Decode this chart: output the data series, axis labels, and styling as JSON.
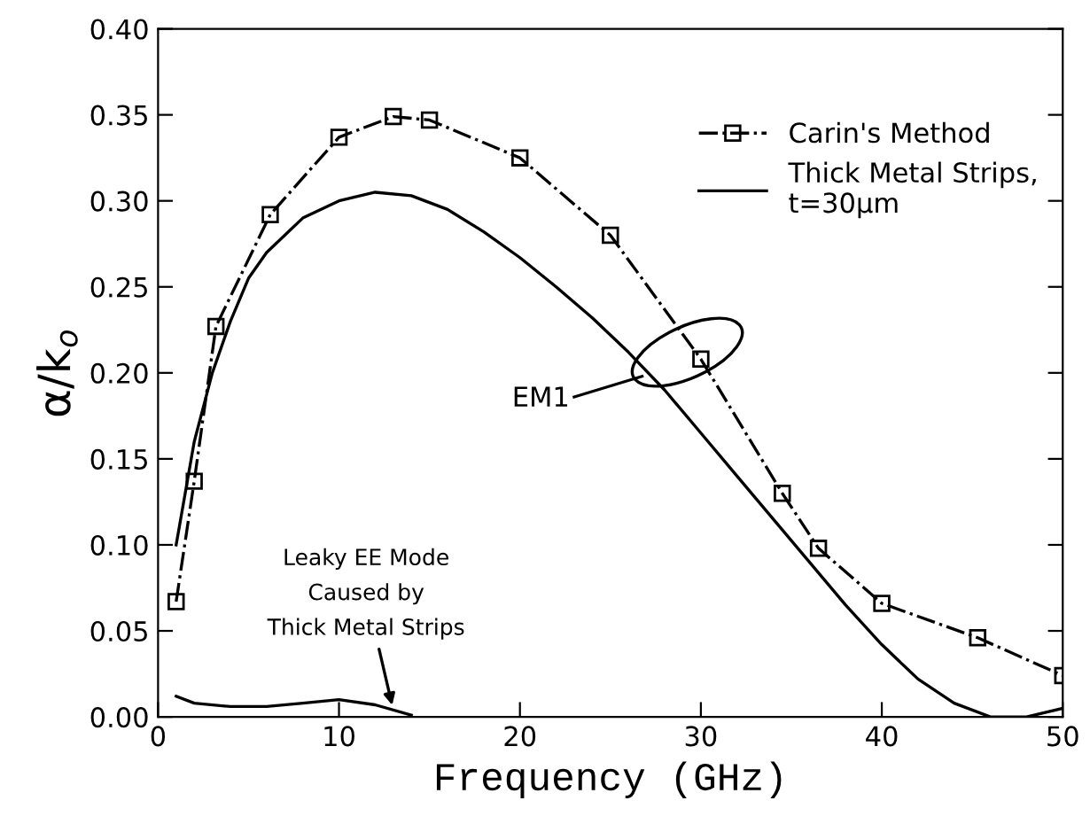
{
  "chart_data": {
    "type": "line",
    "xlabel": "Frequency (GHz)",
    "ylabel": "α/k$_{o}$",
    "xlim": [
      0,
      50
    ],
    "ylim": [
      0,
      0.4
    ],
    "xticks": [
      0,
      10,
      20,
      30,
      40,
      50
    ],
    "yticks": [
      {
        "value": 0,
        "label": "0.00"
      },
      {
        "value": 0.05,
        "label": "0.05"
      },
      {
        "value": 0.1,
        "label": "0.10"
      },
      {
        "value": 0.15,
        "label": "0.15"
      },
      {
        "value": 0.2,
        "label": "0.20"
      },
      {
        "value": 0.25,
        "label": "0.25"
      },
      {
        "value": 0.3,
        "label": "0.30"
      },
      {
        "value": 0.35,
        "label": "0.35"
      },
      {
        "value": 0.4,
        "label": "0.40"
      }
    ],
    "grid": false,
    "legend": "top right",
    "series": [
      {
        "name": "Carin's Method",
        "color": "#000000",
        "marker": "square",
        "line_style": "dashdot",
        "x": [
          1,
          2,
          3.2,
          6.2,
          10,
          13,
          15,
          20,
          25,
          30,
          34.5,
          36.5,
          40,
          45.3,
          50
        ],
        "values": [
          0.067,
          0.137,
          0.227,
          0.292,
          0.337,
          0.349,
          0.347,
          0.325,
          0.28,
          0.208,
          0.13,
          0.098,
          0.066,
          0.046,
          0.024
        ]
      },
      {
        "name": "Thick Metal Strips,\nt=30μm",
        "color": "#000000",
        "marker": "none",
        "line_style": "solid",
        "x": [
          1,
          2,
          3,
          4,
          5,
          6,
          8,
          10,
          12,
          14,
          16,
          18,
          20,
          22,
          24,
          26,
          28,
          30,
          32,
          34,
          36,
          38,
          40,
          42,
          44,
          46,
          48,
          50
        ],
        "values": [
          0.1,
          0.16,
          0.2,
          0.23,
          0.255,
          0.27,
          0.29,
          0.3,
          0.305,
          0.303,
          0.295,
          0.282,
          0.267,
          0.25,
          0.232,
          0.212,
          0.19,
          0.165,
          0.14,
          0.115,
          0.09,
          0.065,
          0.042,
          0.022,
          0.008,
          0.0,
          0.0,
          0.005
        ]
      },
      {
        "color": "#000000",
        "marker": "none",
        "line_style": "solid",
        "x": [
          1,
          2,
          4,
          6,
          8,
          10,
          12,
          14
        ],
        "values": [
          0.012,
          0.008,
          0.006,
          0.006,
          0.008,
          0.01,
          0.007,
          0.001
        ]
      }
    ],
    "annotations": [
      "EM1",
      {
        "text": "Leaky EE Mode\nCaused by\nThick Metal Strips",
        "x": 13,
        "y": 0.004
      }
    ]
  }
}
